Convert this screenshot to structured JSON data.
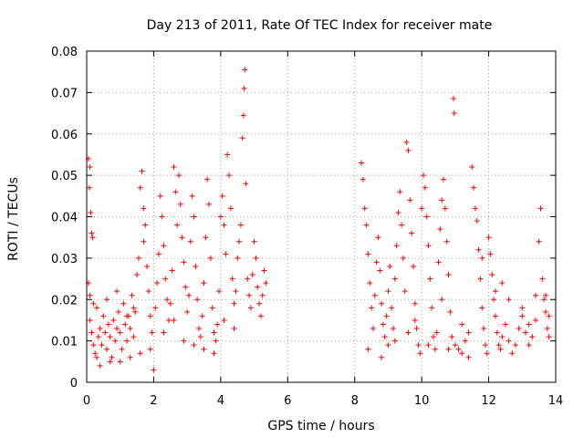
{
  "chart_data": {
    "type": "scatter",
    "title": "Day 213 of 2011, Rate Of TEC Index for receiver mate",
    "xlabel": "GPS time / hours",
    "ylabel": "ROTI / TECUs",
    "xlim": [
      0,
      14
    ],
    "ylim": [
      0,
      0.08
    ],
    "x_ticks": [
      0,
      2,
      4,
      6,
      8,
      10,
      12,
      14
    ],
    "x_tick_labels": [
      "0",
      "2",
      "4",
      "6",
      "8",
      "10",
      "12",
      "14"
    ],
    "y_ticks": [
      0,
      0.01,
      0.02,
      0.03,
      0.04,
      0.05,
      0.06,
      0.07,
      0.08
    ],
    "y_tick_labels": [
      "0",
      "0.01",
      "0.02",
      "0.03",
      "0.04",
      "0.05",
      "0.06",
      "0.07",
      "0.08"
    ],
    "grid": true,
    "marker": "plus",
    "color": "#ff0000",
    "series": [
      {
        "name": "ROTI",
        "points": [
          [
            0.05,
            0.054
          ],
          [
            0.08,
            0.047
          ],
          [
            0.1,
            0.052
          ],
          [
            0.12,
            0.041
          ],
          [
            0.15,
            0.036
          ],
          [
            0.18,
            0.035
          ],
          [
            0.05,
            0.024
          ],
          [
            0.1,
            0.021
          ],
          [
            0.2,
            0.019
          ],
          [
            0.1,
            0.015
          ],
          [
            0.15,
            0.012
          ],
          [
            0.2,
            0.009
          ],
          [
            0.25,
            0.007
          ],
          [
            0.3,
            0.006
          ],
          [
            0.35,
            0.011
          ],
          [
            0.4,
            0.013
          ],
          [
            0.45,
            0.009
          ],
          [
            0.5,
            0.016
          ],
          [
            0.55,
            0.012
          ],
          [
            0.6,
            0.008
          ],
          [
            0.65,
            0.014
          ],
          [
            0.7,
            0.011
          ],
          [
            0.75,
            0.006
          ],
          [
            0.8,
            0.015
          ],
          [
            0.85,
            0.01
          ],
          [
            0.9,
            0.013
          ],
          [
            0.95,
            0.017
          ],
          [
            1.0,
            0.012
          ],
          [
            1.05,
            0.008
          ],
          [
            1.1,
            0.019
          ],
          [
            1.15,
            0.014
          ],
          [
            1.2,
            0.01
          ],
          [
            1.25,
            0.016
          ],
          [
            1.3,
            0.013
          ],
          [
            1.35,
            0.021
          ],
          [
            1.4,
            0.011
          ],
          [
            1.45,
            0.017
          ],
          [
            1.5,
            0.026
          ],
          [
            1.55,
            0.03
          ],
          [
            1.6,
            0.047
          ],
          [
            1.65,
            0.051
          ],
          [
            1.7,
            0.042
          ],
          [
            1.75,
            0.038
          ],
          [
            1.8,
            0.028
          ],
          [
            1.85,
            0.022
          ],
          [
            1.9,
            0.016
          ],
          [
            1.95,
            0.012
          ],
          [
            2.0,
            0.003
          ],
          [
            2.05,
            0.018
          ],
          [
            2.1,
            0.024
          ],
          [
            2.15,
            0.031
          ],
          [
            2.2,
            0.045
          ],
          [
            2.25,
            0.04
          ],
          [
            2.3,
            0.033
          ],
          [
            2.35,
            0.025
          ],
          [
            2.4,
            0.02
          ],
          [
            2.45,
            0.015
          ],
          [
            2.5,
            0.019
          ],
          [
            2.55,
            0.027
          ],
          [
            2.6,
            0.052
          ],
          [
            2.65,
            0.046
          ],
          [
            2.7,
            0.038
          ],
          [
            2.75,
            0.05
          ],
          [
            2.8,
            0.043
          ],
          [
            2.85,
            0.035
          ],
          [
            2.9,
            0.029
          ],
          [
            2.95,
            0.023
          ],
          [
            3.0,
            0.017
          ],
          [
            3.05,
            0.021
          ],
          [
            3.1,
            0.034
          ],
          [
            3.15,
            0.045
          ],
          [
            3.2,
            0.04
          ],
          [
            3.25,
            0.028
          ],
          [
            3.3,
            0.02
          ],
          [
            3.35,
            0.013
          ],
          [
            3.4,
            0.011
          ],
          [
            3.45,
            0.016
          ],
          [
            3.5,
            0.024
          ],
          [
            3.55,
            0.035
          ],
          [
            3.6,
            0.049
          ],
          [
            3.65,
            0.043
          ],
          [
            3.7,
            0.03
          ],
          [
            3.75,
            0.018
          ],
          [
            3.8,
            0.012
          ],
          [
            3.85,
            0.01
          ],
          [
            3.9,
            0.014
          ],
          [
            3.95,
            0.022
          ],
          [
            4.0,
            0.04
          ],
          [
            4.05,
            0.045
          ],
          [
            4.1,
            0.038
          ],
          [
            4.15,
            0.031
          ],
          [
            4.2,
            0.055
          ],
          [
            4.25,
            0.05
          ],
          [
            4.3,
            0.042
          ],
          [
            4.35,
            0.025
          ],
          [
            4.4,
            0.019
          ],
          [
            4.45,
            0.022
          ],
          [
            4.5,
            0.03
          ],
          [
            4.55,
            0.034
          ],
          [
            4.6,
            0.038
          ],
          [
            4.65,
            0.059
          ],
          [
            4.68,
            0.0645
          ],
          [
            4.7,
            0.071
          ],
          [
            4.72,
            0.0755
          ],
          [
            4.75,
            0.048
          ],
          [
            4.8,
            0.025
          ],
          [
            4.85,
            0.021
          ],
          [
            4.9,
            0.018
          ],
          [
            4.95,
            0.026
          ],
          [
            5.0,
            0.034
          ],
          [
            5.05,
            0.03
          ],
          [
            5.1,
            0.023
          ],
          [
            5.15,
            0.019
          ],
          [
            5.2,
            0.016
          ],
          [
            5.25,
            0.021
          ],
          [
            5.3,
            0.027
          ],
          [
            5.35,
            0.024
          ],
          [
            0.3,
            0.018
          ],
          [
            0.6,
            0.02
          ],
          [
            0.9,
            0.022
          ],
          [
            1.2,
            0.016
          ],
          [
            1.4,
            0.018
          ],
          [
            1.7,
            0.034
          ],
          [
            1.9,
            0.008
          ],
          [
            2.3,
            0.012
          ],
          [
            2.6,
            0.015
          ],
          [
            2.9,
            0.01
          ],
          [
            3.2,
            0.009
          ],
          [
            3.5,
            0.008
          ],
          [
            3.8,
            0.007
          ],
          [
            4.1,
            0.015
          ],
          [
            4.4,
            0.013
          ],
          [
            0.4,
            0.004
          ],
          [
            0.7,
            0.005
          ],
          [
            1.0,
            0.005
          ],
          [
            1.3,
            0.006
          ],
          [
            1.6,
            0.007
          ],
          [
            8.2,
            0.053
          ],
          [
            8.25,
            0.049
          ],
          [
            8.3,
            0.042
          ],
          [
            8.35,
            0.038
          ],
          [
            8.4,
            0.031
          ],
          [
            8.45,
            0.024
          ],
          [
            8.5,
            0.018
          ],
          [
            8.55,
            0.013
          ],
          [
            8.6,
            0.021
          ],
          [
            8.65,
            0.029
          ],
          [
            8.7,
            0.035
          ],
          [
            8.75,
            0.027
          ],
          [
            8.8,
            0.019
          ],
          [
            8.85,
            0.014
          ],
          [
            8.9,
            0.011
          ],
          [
            8.95,
            0.016
          ],
          [
            9.0,
            0.022
          ],
          [
            9.05,
            0.028
          ],
          [
            9.1,
            0.018
          ],
          [
            9.15,
            0.013
          ],
          [
            9.2,
            0.025
          ],
          [
            9.25,
            0.033
          ],
          [
            9.3,
            0.041
          ],
          [
            9.35,
            0.046
          ],
          [
            9.4,
            0.038
          ],
          [
            9.45,
            0.03
          ],
          [
            9.5,
            0.022
          ],
          [
            9.55,
            0.058
          ],
          [
            9.6,
            0.056
          ],
          [
            9.65,
            0.044
          ],
          [
            9.7,
            0.036
          ],
          [
            9.75,
            0.028
          ],
          [
            9.8,
            0.019
          ],
          [
            9.85,
            0.013
          ],
          [
            9.9,
            0.009
          ],
          [
            9.95,
            0.007
          ],
          [
            10.0,
            0.042
          ],
          [
            10.05,
            0.05
          ],
          [
            10.1,
            0.047
          ],
          [
            10.15,
            0.04
          ],
          [
            10.2,
            0.033
          ],
          [
            10.25,
            0.025
          ],
          [
            10.3,
            0.018
          ],
          [
            10.35,
            0.011
          ],
          [
            10.4,
            0.008
          ],
          [
            10.45,
            0.012
          ],
          [
            10.5,
            0.029
          ],
          [
            10.55,
            0.037
          ],
          [
            10.6,
            0.044
          ],
          [
            10.65,
            0.049
          ],
          [
            10.7,
            0.042
          ],
          [
            10.75,
            0.034
          ],
          [
            10.8,
            0.026
          ],
          [
            10.85,
            0.017
          ],
          [
            10.9,
            0.011
          ],
          [
            10.95,
            0.0685
          ],
          [
            10.97,
            0.065
          ],
          [
            11.0,
            0.009
          ],
          [
            11.1,
            0.008
          ],
          [
            11.2,
            0.007
          ],
          [
            11.3,
            0.01
          ],
          [
            11.4,
            0.012
          ],
          [
            11.5,
            0.052
          ],
          [
            11.55,
            0.047
          ],
          [
            11.6,
            0.042
          ],
          [
            11.65,
            0.039
          ],
          [
            11.7,
            0.032
          ],
          [
            11.75,
            0.025
          ],
          [
            11.8,
            0.018
          ],
          [
            11.85,
            0.013
          ],
          [
            11.9,
            0.009
          ],
          [
            11.95,
            0.007
          ],
          [
            12.0,
            0.035
          ],
          [
            12.05,
            0.031
          ],
          [
            12.1,
            0.026
          ],
          [
            12.15,
            0.02
          ],
          [
            12.2,
            0.016
          ],
          [
            12.25,
            0.012
          ],
          [
            12.3,
            0.009
          ],
          [
            12.35,
            0.008
          ],
          [
            12.4,
            0.011
          ],
          [
            12.5,
            0.014
          ],
          [
            12.6,
            0.01
          ],
          [
            12.7,
            0.007
          ],
          [
            12.8,
            0.009
          ],
          [
            12.9,
            0.013
          ],
          [
            13.0,
            0.016
          ],
          [
            13.1,
            0.012
          ],
          [
            13.2,
            0.009
          ],
          [
            13.3,
            0.011
          ],
          [
            13.4,
            0.015
          ],
          [
            13.5,
            0.034
          ],
          [
            13.55,
            0.042
          ],
          [
            13.6,
            0.025
          ],
          [
            13.65,
            0.02
          ],
          [
            13.7,
            0.017
          ],
          [
            13.75,
            0.013
          ],
          [
            13.8,
            0.011
          ],
          [
            13.7,
            0.021
          ],
          [
            13.8,
            0.016
          ],
          [
            8.4,
            0.008
          ],
          [
            8.8,
            0.006
          ],
          [
            9.2,
            0.01
          ],
          [
            9.6,
            0.012
          ],
          [
            10.2,
            0.009
          ],
          [
            10.8,
            0.008
          ],
          [
            11.4,
            0.006
          ],
          [
            12.2,
            0.022
          ],
          [
            12.6,
            0.02
          ],
          [
            13.0,
            0.018
          ],
          [
            13.4,
            0.021
          ],
          [
            9.0,
            0.009
          ],
          [
            9.8,
            0.015
          ],
          [
            10.6,
            0.02
          ],
          [
            11.2,
            0.014
          ],
          [
            11.8,
            0.03
          ],
          [
            12.4,
            0.024
          ],
          [
            13.2,
            0.014
          ]
        ]
      }
    ]
  }
}
